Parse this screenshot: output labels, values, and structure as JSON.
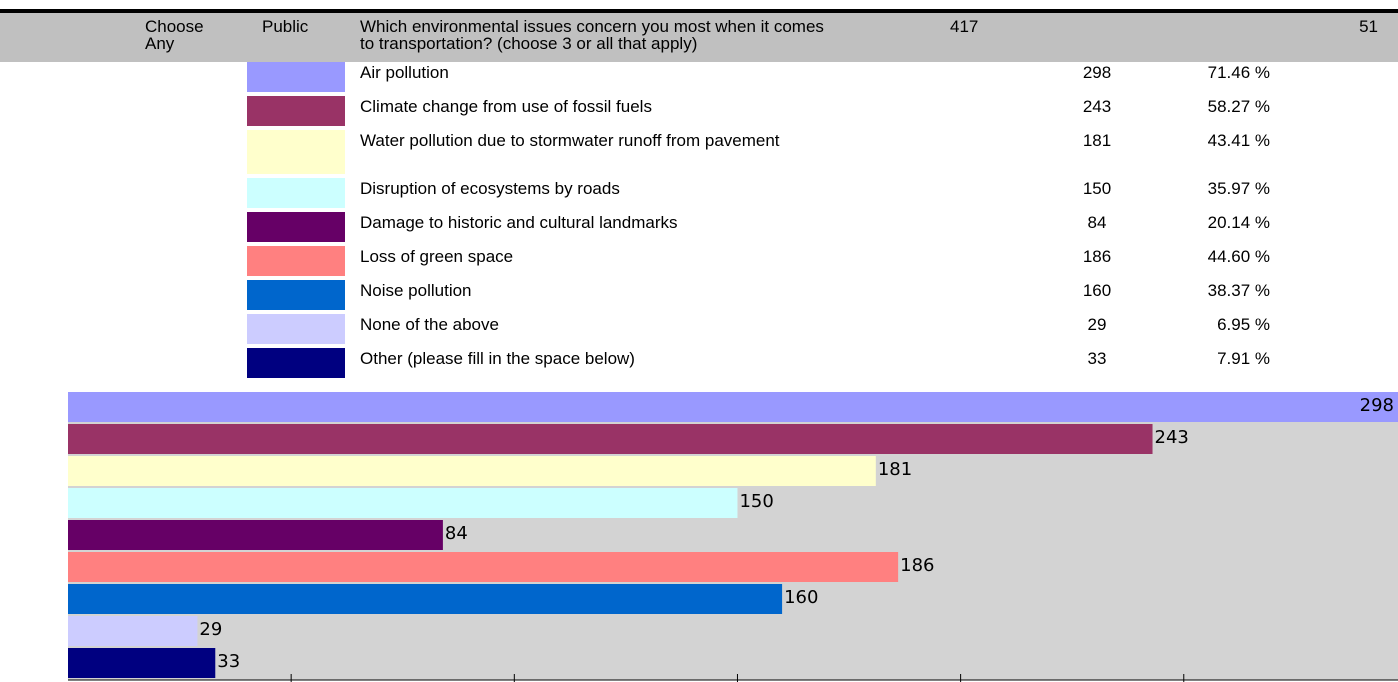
{
  "header": {
    "type": "Choose Any",
    "access": "Public",
    "question": "Which environmental issues concern you most when it comes to transportation? (choose 3 or all that apply)",
    "responses": 417,
    "number": 51
  },
  "table": {
    "rows": [
      {
        "label": "Air pollution",
        "count": 298,
        "percent": "71.46 %",
        "color": "#9999ff"
      },
      {
        "label": "Climate change from use of fossil fuels",
        "count": 243,
        "percent": "58.27 %",
        "color": "#993366"
      },
      {
        "label": "Water pollution due to stormwater runoff from pavement",
        "count": 181,
        "percent": "43.41 %",
        "color": "#ffffcc"
      },
      {
        "label": "Disruption of ecosystems by roads",
        "count": 150,
        "percent": "35.97 %",
        "color": "#ccffff"
      },
      {
        "label": "Damage to historic and cultural landmarks",
        "count": 84,
        "percent": "20.14 %",
        "color": "#660066"
      },
      {
        "label": "Loss of green space",
        "count": 186,
        "percent": "44.60 %",
        "color": "#ff8080"
      },
      {
        "label": "Noise pollution",
        "count": 160,
        "percent": "38.37 %",
        "color": "#0066cc"
      },
      {
        "label": "None of the above",
        "count": 29,
        "percent": "6.95 %",
        "color": "#ccccff"
      },
      {
        "label": "Other (please fill in the space below)",
        "count": 33,
        "percent": "7.91 %",
        "color": "#000080"
      }
    ]
  },
  "chart_data": {
    "type": "bar",
    "xlim": [
      0,
      298
    ],
    "xticks": [
      50,
      100,
      150,
      200,
      250
    ]
  }
}
